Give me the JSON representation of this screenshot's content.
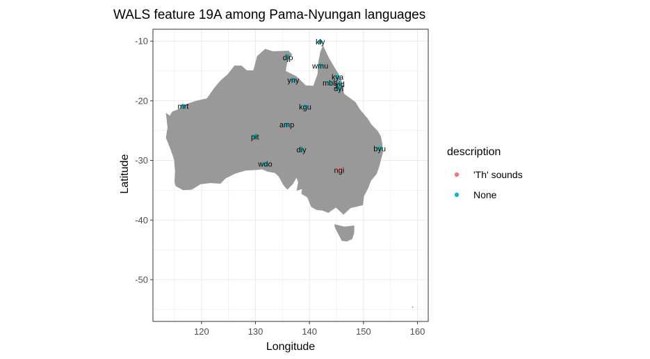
{
  "chart_data": {
    "type": "scatter",
    "title": "WALS feature 19A among Pama-Nyungan languages",
    "xlabel": "Longitude",
    "ylabel": "Latitude",
    "xlim": [
      111,
      162
    ],
    "ylim": [
      -57,
      -8
    ],
    "xticks": [
      120,
      130,
      140,
      150,
      160
    ],
    "yticks": [
      -10,
      -20,
      -30,
      -40,
      -50
    ],
    "grid": true,
    "legend": {
      "title": "description",
      "position": "right",
      "entries": [
        {
          "label": "'Th' sounds",
          "color": "#F8766D"
        },
        {
          "label": "None",
          "color": "#00BFC4"
        }
      ]
    },
    "points": [
      {
        "label": "kly",
        "x": 142.0,
        "y": -10.1,
        "category": "None"
      },
      {
        "label": "djp",
        "x": 136.0,
        "y": -12.7,
        "category": "None"
      },
      {
        "label": "wmu",
        "x": 142.0,
        "y": -14.1,
        "category": "None"
      },
      {
        "label": "kya",
        "x": 145.2,
        "y": -16.0,
        "category": "None"
      },
      {
        "label": "yny",
        "x": 137.0,
        "y": -16.5,
        "category": "None"
      },
      {
        "label": "mbb",
        "x": 143.8,
        "y": -17.0,
        "category": "None"
      },
      {
        "label": "yid",
        "x": 145.6,
        "y": -17.2,
        "category": "None"
      },
      {
        "label": "dyi",
        "x": 145.4,
        "y": -17.9,
        "category": "None"
      },
      {
        "label": "mrt",
        "x": 116.6,
        "y": -20.9,
        "category": "None"
      },
      {
        "label": "kgu",
        "x": 139.2,
        "y": -21.0,
        "category": "None"
      },
      {
        "label": "amp",
        "x": 135.8,
        "y": -24.0,
        "category": "None"
      },
      {
        "label": "pit",
        "x": 129.9,
        "y": -26.0,
        "category": "None"
      },
      {
        "label": "diy",
        "x": 138.5,
        "y": -28.2,
        "category": "None"
      },
      {
        "label": "byu",
        "x": 153.0,
        "y": -28.0,
        "category": "None"
      },
      {
        "label": "wdo",
        "x": 131.8,
        "y": -30.6,
        "category": "None"
      },
      {
        "label": "ngi",
        "x": 145.5,
        "y": -31.6,
        "category": "'Th' sounds"
      }
    ]
  },
  "colors": {
    "land": "#999999",
    "grid": "#ebebeb",
    "panel_border": "#333333",
    "th_sounds": "#F8766D",
    "none": "#00BFC4"
  }
}
